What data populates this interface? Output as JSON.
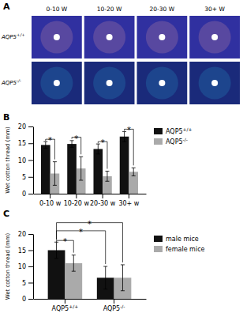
{
  "chart_data": [
    {
      "type": "image",
      "title": "A",
      "categories": [
        "0-10 W",
        "10-20 W",
        "20-30 W",
        "30+ W"
      ],
      "row_labels": [
        "AQP5+/+",
        "AQP5-/-"
      ]
    },
    {
      "type": "bar",
      "title": "B",
      "categories": [
        "0-10 w",
        "10-20 w",
        "20-30 w",
        "30+ w"
      ],
      "series": [
        {
          "name": "AQP5+/+",
          "color": "#111111",
          "values": [
            14.5,
            14.8,
            13.3,
            17.0
          ],
          "errors": [
            1.0,
            1.0,
            1.5,
            1.5
          ]
        },
        {
          "name": "AQP5-/-",
          "color": "#aaaaaa",
          "values": [
            6.0,
            7.5,
            5.2,
            6.5
          ],
          "errors": [
            3.5,
            3.5,
            1.5,
            1.2
          ]
        }
      ],
      "ylabel": "Wet cotton thread (mm)",
      "ylim": [
        0,
        20
      ],
      "yticks": [
        0,
        5,
        10,
        15,
        20
      ],
      "grid": false,
      "legend": "right",
      "annotations": [
        {
          "text": "*",
          "y": 16.2,
          "from": [
            0,
            0
          ],
          "to": [
            1,
            0
          ]
        },
        {
          "text": "*",
          "y": 16.8,
          "from": [
            0,
            1
          ],
          "to": [
            1,
            1
          ]
        },
        {
          "text": "*",
          "y": 15.5,
          "from": [
            0,
            2
          ],
          "to": [
            1,
            2
          ]
        },
        {
          "text": "*",
          "y": 19.2,
          "from": [
            0,
            3
          ],
          "to": [
            1,
            3
          ]
        }
      ]
    },
    {
      "type": "bar",
      "title": "C",
      "categories": [
        "AQP5+/+",
        "AQP5-/-"
      ],
      "series": [
        {
          "name": "male mice",
          "color": "#111111",
          "values": [
            15.0,
            6.5
          ],
          "errors": [
            2.5,
            3.5
          ]
        },
        {
          "name": "female mice",
          "color": "#aaaaaa",
          "values": [
            11.0,
            6.5
          ],
          "errors": [
            2.5,
            4.0
          ]
        }
      ],
      "ylabel": "Wet cotton thread (mm)",
      "ylim": [
        0,
        20
      ],
      "yticks": [
        0,
        5,
        10,
        15,
        20
      ],
      "grid": false,
      "legend": "right",
      "annotations": [
        {
          "text": "*",
          "y": 18.0,
          "from": [
            0,
            0
          ],
          "to": [
            1,
            0
          ]
        },
        {
          "text": "*",
          "y": 21.0,
          "from": [
            0,
            0
          ],
          "to": [
            0,
            1
          ]
        },
        {
          "text": "*",
          "y": 23.5,
          "from": [
            0,
            0
          ],
          "to": [
            1,
            1
          ]
        }
      ]
    }
  ]
}
